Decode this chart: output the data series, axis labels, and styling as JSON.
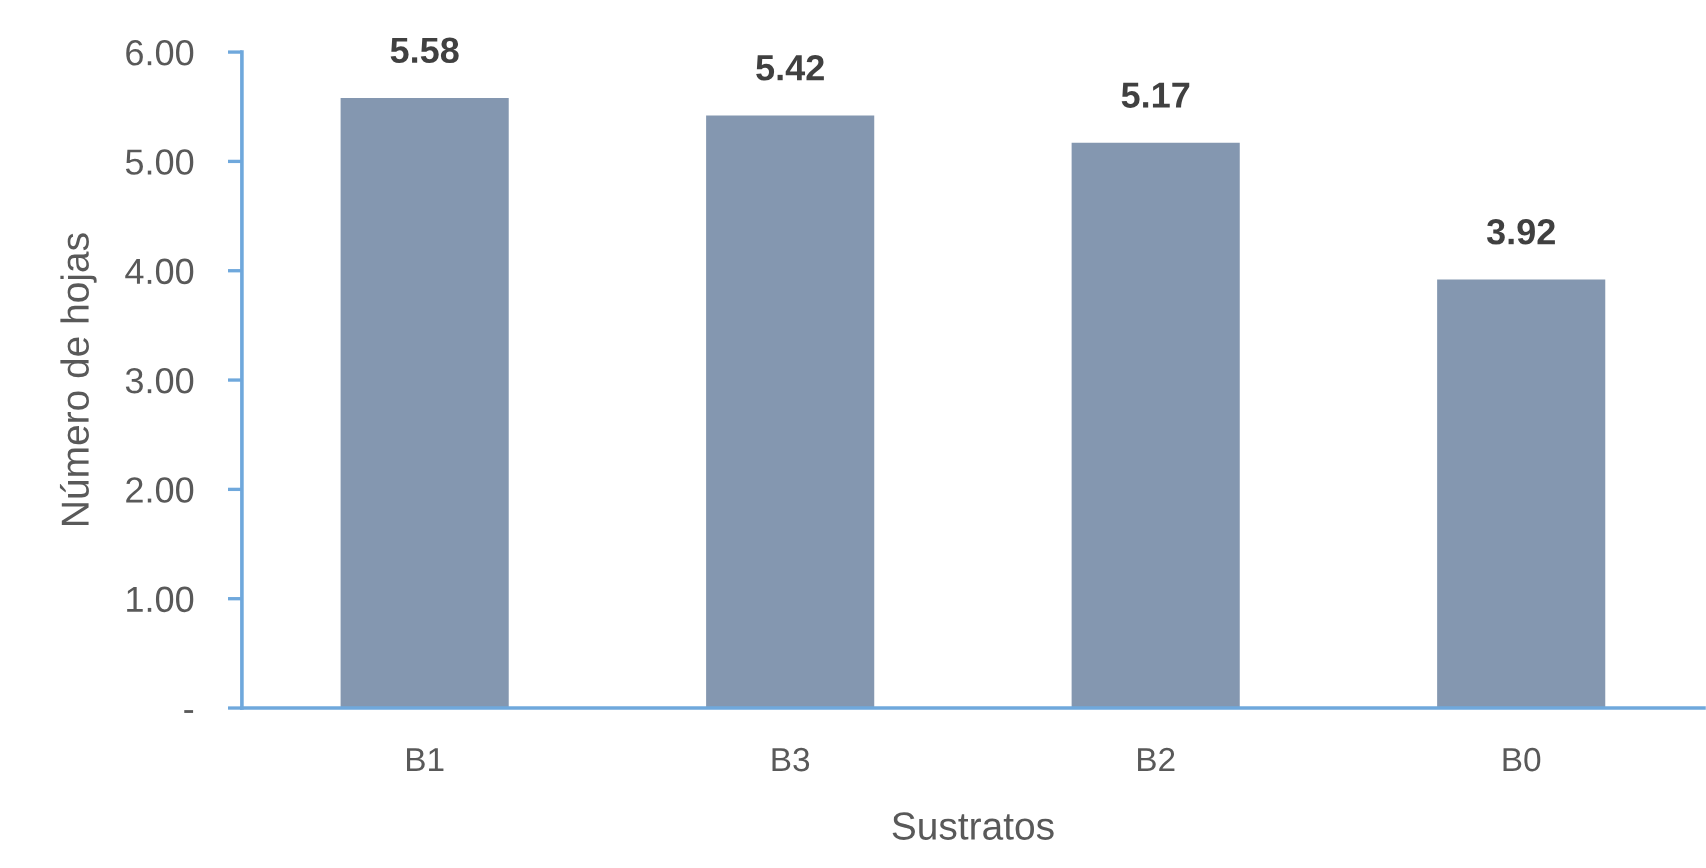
{
  "chart_data": {
    "type": "bar",
    "xlabel": "Sustratos",
    "ylabel": "Número de hojas",
    "categories": [
      "B1",
      "B3",
      "B2",
      "B0"
    ],
    "values": [
      5.58,
      5.42,
      5.17,
      3.92
    ],
    "color": "#8497b0",
    "ylim": [
      0,
      6
    ],
    "yticks": [
      {
        "value": 0,
        "label": "-"
      },
      {
        "value": 1,
        "label": "1.00"
      },
      {
        "value": 2,
        "label": "2.00"
      },
      {
        "value": 3,
        "label": "3.00"
      },
      {
        "value": 4,
        "label": "4.00"
      },
      {
        "value": 5,
        "label": "5.00"
      },
      {
        "value": 6,
        "label": "6.00"
      }
    ],
    "data_labels": true,
    "grid": false
  }
}
